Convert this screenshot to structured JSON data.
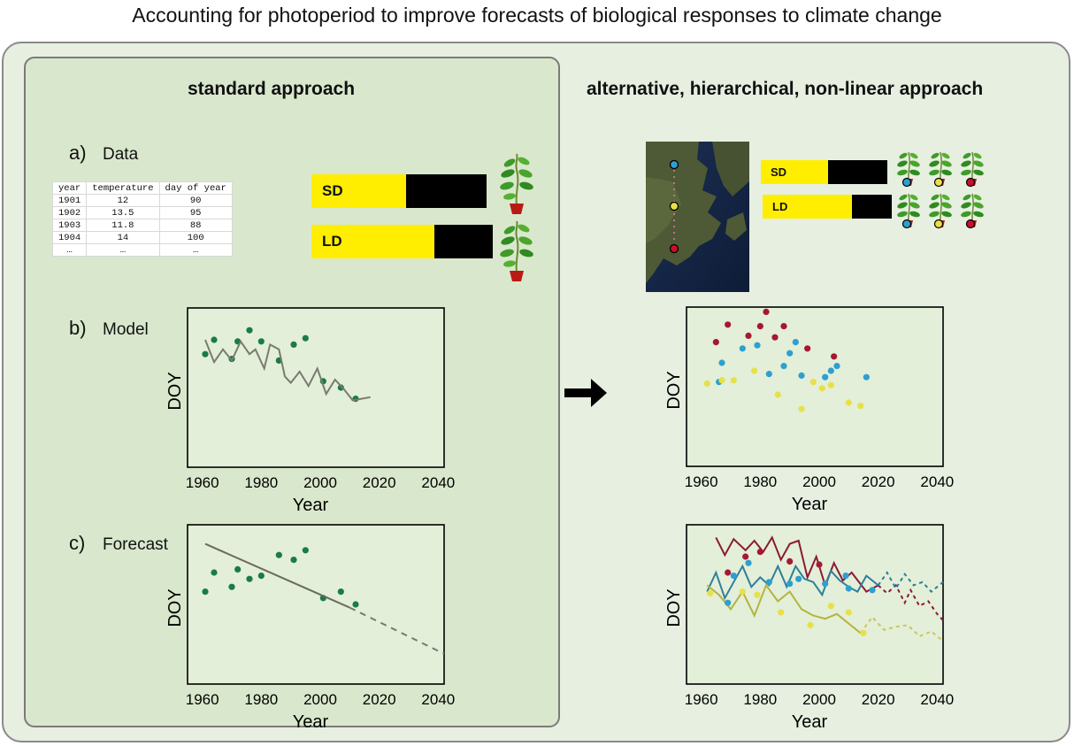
{
  "title": "Accounting for photoperiod to improve forecasts of biological responses to climate change",
  "left_heading": "standard approach",
  "right_heading": "alternative, hierarchical, non-linear approach",
  "steps": [
    {
      "letter": "a)",
      "label": "Data"
    },
    {
      "letter": "b)",
      "label": "Model"
    },
    {
      "letter": "c)",
      "label": "Forecast"
    }
  ],
  "data_table": {
    "headers": [
      "year",
      "temperature",
      "day of year"
    ],
    "rows": [
      [
        "1901",
        "12",
        "90"
      ],
      [
        "1902",
        "13.5",
        "95"
      ],
      [
        "1903",
        "11.8",
        "88"
      ],
      [
        "1904",
        "14",
        "100"
      ],
      [
        "…",
        "…",
        "…"
      ]
    ]
  },
  "photoperiod": {
    "sd_label": "SD",
    "ld_label": "LD",
    "sd_light_fraction": 0.54,
    "ld_light_fraction": 0.68,
    "small_sd_light_fraction": 0.53,
    "small_ld_light_fraction": 0.69,
    "light_color": "#ffee00",
    "dark_color": "#000000"
  },
  "site_colors": {
    "north": "#2e9fd0",
    "middle": "#e8e04a",
    "south": "#c8102e"
  },
  "arrow": "right-arrow",
  "chart_data": [
    {
      "id": "standard-model",
      "type": "scatter",
      "xlabel": "Year",
      "ylabel": "DOY",
      "xlim": [
        1955,
        2042
      ],
      "ylim": [
        0,
        100
      ],
      "xticks": [
        "1960",
        "1980",
        "2000",
        "2020",
        "2040"
      ],
      "series": [
        {
          "kind": "points",
          "color": "#1a7a4a",
          "x": [
            1961,
            1964,
            1970,
            1972,
            1976,
            1980,
            1986,
            1991,
            1995,
            2001,
            2007,
            2012
          ],
          "y": [
            71,
            80,
            68,
            79,
            86,
            79,
            67,
            77,
            81,
            54,
            50,
            43
          ]
        },
        {
          "kind": "line",
          "color": "#7a7a70",
          "x": [
            1961,
            1964,
            1967,
            1970,
            1973,
            1976,
            1978,
            1981,
            1983,
            1986,
            1988,
            1990,
            1993,
            1996,
            1999,
            2002,
            2005,
            2008,
            2011,
            2017
          ],
          "y": [
            80,
            66,
            74,
            67,
            79,
            71,
            74,
            62,
            77,
            74,
            57,
            53,
            60,
            51,
            62,
            46,
            55,
            49,
            42,
            44
          ]
        }
      ],
      "point_order": "as-listed"
    },
    {
      "id": "standard-forecast",
      "type": "scatter",
      "xlabel": "Year",
      "ylabel": "DOY",
      "xlim": [
        1955,
        2042
      ],
      "ylim": [
        0,
        100
      ],
      "xticks": [
        "1960",
        "1980",
        "2000",
        "2020",
        "2040"
      ]
    },
    {
      "id": "hierarchical-model",
      "type": "scatter",
      "xlabel": "Year",
      "ylabel": "DOY",
      "xlim": [
        1955,
        2042
      ],
      "ylim": [
        0,
        100
      ],
      "xticks": [
        "1960",
        "1980",
        "2000",
        "2020",
        "2040"
      ]
    },
    {
      "id": "hierarchical-forecast",
      "type": "line",
      "xlabel": "Year",
      "ylabel": "DOY",
      "xlim": [
        1955,
        2042
      ],
      "ylim": [
        0,
        100
      ],
      "xticks": [
        "1960",
        "1980",
        "2000",
        "2020",
        "2040"
      ]
    }
  ]
}
